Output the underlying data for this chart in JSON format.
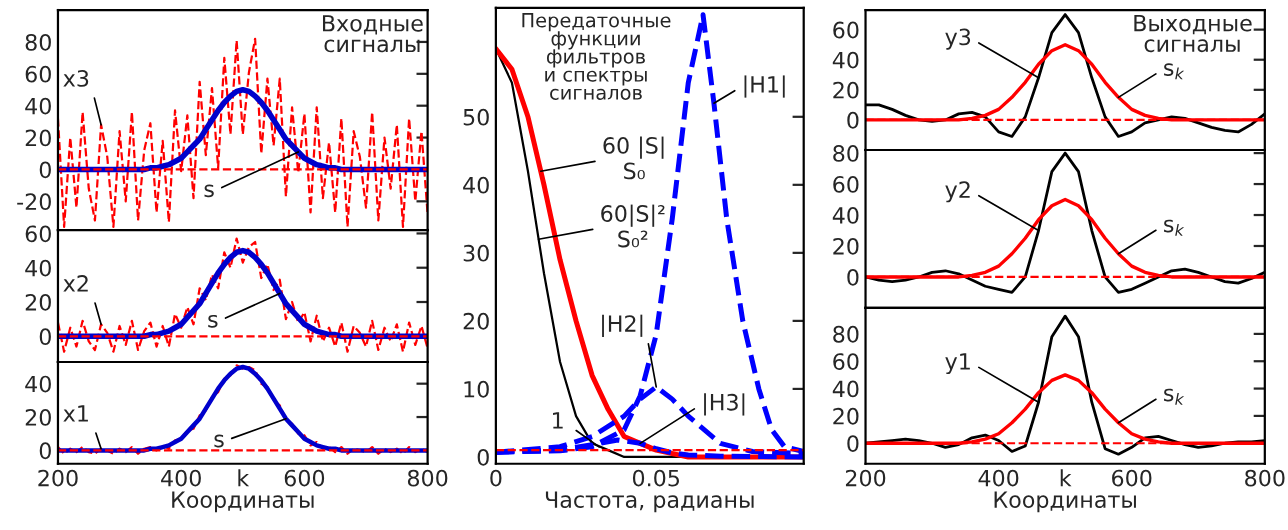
{
  "chart_data": [
    {
      "type": "line",
      "x": [
        200,
        210,
        220,
        230,
        240,
        250,
        260,
        270,
        280,
        290,
        300,
        310,
        320,
        330,
        340,
        350,
        360,
        370,
        380,
        390,
        400,
        410,
        420,
        430,
        440,
        450,
        460,
        470,
        480,
        490,
        500,
        510,
        520,
        530,
        540,
        550,
        560,
        570,
        580,
        590,
        600,
        610,
        620,
        630,
        640,
        650,
        660,
        670,
        680,
        690,
        700,
        710,
        720,
        730,
        740,
        750,
        760,
        770,
        780,
        790,
        800
      ],
      "series": [
        {
          "color": "#ff0000",
          "line_style": "dashed",
          "values": [
            32,
            -36,
            20,
            -24,
            36,
            -12,
            -32,
            28,
            8,
            -36,
            24,
            -20,
            36,
            -32,
            12,
            29,
            -27,
            18,
            -33,
            37,
            -1,
            34,
            -18,
            55,
            9,
            51,
            1,
            70,
            22,
            81,
            22,
            61,
            82,
            10,
            57,
            15,
            57,
            -17,
            39,
            -2,
            35,
            -27,
            39,
            -18,
            17,
            -27,
            32,
            -36,
            24,
            8,
            -24,
            36,
            -32,
            20,
            -12,
            28,
            -36,
            32,
            -20,
            24,
            -28
          ]
        },
        {
          "color": "#0000cc",
          "line_style": "solid",
          "values": [
            0,
            0,
            0,
            0,
            0,
            0,
            0,
            0,
            0,
            0,
            0,
            0,
            0,
            0,
            0,
            1,
            1,
            2,
            3,
            5,
            7,
            11,
            15,
            19,
            25,
            31,
            37,
            42,
            46,
            49,
            50,
            49,
            46,
            42,
            37,
            31,
            25,
            19,
            15,
            11,
            7,
            5,
            3,
            2,
            1,
            1,
            0,
            0,
            0,
            0,
            0,
            0,
            0,
            0,
            0,
            0,
            0,
            0,
            0,
            0,
            0
          ]
        }
      ],
      "xlim": [
        200,
        800
      ],
      "ylim": [
        -38,
        100
      ],
      "xticks": [
        {
          "value": 400,
          "label": null
        },
        {
          "value": 600,
          "label": null
        }
      ],
      "yticks": [
        -20,
        0,
        20,
        40,
        60,
        80
      ],
      "tick_labels": "y",
      "ref_lines": [
        {
          "axis": "y",
          "value": 0,
          "color": "#ff0000",
          "line_style": "dashed"
        }
      ],
      "annotations": [
        {
          "text": "x3",
          "x": 270,
          "y": 28
        },
        {
          "text": "s",
          "x": 590,
          "y": 11
        },
        "Входные\nсигналы"
      ]
    },
    {
      "type": "line",
      "x": [
        200,
        210,
        220,
        230,
        240,
        250,
        260,
        270,
        280,
        290,
        300,
        310,
        320,
        330,
        340,
        350,
        360,
        370,
        380,
        390,
        400,
        410,
        420,
        430,
        440,
        450,
        460,
        470,
        480,
        490,
        500,
        510,
        520,
        530,
        540,
        550,
        560,
        570,
        580,
        590,
        600,
        610,
        620,
        630,
        640,
        650,
        660,
        670,
        680,
        690,
        700,
        710,
        720,
        730,
        740,
        750,
        760,
        770,
        780,
        790,
        800
      ],
      "series": [
        {
          "color": "#ff0000",
          "line_style": "dashed",
          "values": [
            8,
            -9,
            5,
            -6,
            9,
            -3,
            -8,
            7,
            2,
            -9,
            6,
            -5,
            9,
            -8,
            3,
            8,
            -6,
            6,
            -6,
            13,
            5,
            17,
            7,
            28,
            21,
            36,
            28,
            49,
            40,
            57,
            43,
            52,
            55,
            34,
            42,
            27,
            33,
            10,
            20,
            8,
            14,
            -3,
            12,
            -3,
            5,
            -6,
            8,
            -9,
            6,
            2,
            -6,
            9,
            -8,
            5,
            -3,
            7,
            -9,
            8,
            -5,
            6,
            -7
          ]
        },
        {
          "color": "#0000cc",
          "line_style": "solid",
          "values": [
            0,
            0,
            0,
            0,
            0,
            0,
            0,
            0,
            0,
            0,
            0,
            0,
            0,
            0,
            0,
            1,
            1,
            2,
            3,
            5,
            7,
            11,
            15,
            19,
            25,
            31,
            37,
            42,
            46,
            49,
            50,
            49,
            46,
            42,
            37,
            31,
            25,
            19,
            15,
            11,
            7,
            5,
            3,
            2,
            1,
            1,
            0,
            0,
            0,
            0,
            0,
            0,
            0,
            0,
            0,
            0,
            0,
            0,
            0,
            0,
            0
          ]
        }
      ],
      "xlim": [
        200,
        800
      ],
      "ylim": [
        -15,
        62
      ],
      "xticks": [
        {
          "value": 400,
          "label": null
        },
        {
          "value": 600,
          "label": null
        }
      ],
      "yticks": [
        0,
        20,
        40,
        60
      ],
      "tick_labels": "y",
      "ref_lines": [
        {
          "axis": "y",
          "value": 0,
          "color": "#ff0000",
          "line_style": "dashed"
        }
      ],
      "annotations": [
        {
          "text": "x2",
          "x": 270,
          "y": 7
        },
        {
          "text": "s",
          "x": 560,
          "y": 25
        }
      ]
    },
    {
      "type": "line",
      "x": [
        200,
        210,
        220,
        230,
        240,
        250,
        260,
        270,
        280,
        290,
        300,
        310,
        320,
        330,
        340,
        350,
        360,
        370,
        380,
        390,
        400,
        410,
        420,
        430,
        440,
        450,
        460,
        470,
        480,
        490,
        500,
        510,
        520,
        530,
        540,
        550,
        560,
        570,
        580,
        590,
        600,
        610,
        620,
        630,
        640,
        650,
        660,
        670,
        680,
        690,
        700,
        710,
        720,
        730,
        740,
        750,
        760,
        770,
        780,
        790,
        800
      ],
      "series": [
        {
          "color": "#ff0000",
          "line_style": "dashed",
          "values": [
            2,
            -2,
            1,
            -1,
            2,
            -1,
            -2,
            1,
            0,
            -2,
            1,
            -1,
            2,
            -2,
            1,
            2,
            0,
            3,
            1,
            6,
            7,
            12,
            13,
            21,
            24,
            32,
            35,
            43,
            45,
            51,
            49,
            50,
            48,
            40,
            38,
            30,
            27,
            18,
            16,
            10,
            9,
            3,
            5,
            1,
            2,
            -1,
            2,
            -2,
            1,
            0,
            -1,
            2,
            -2,
            1,
            -1,
            1,
            -2,
            2,
            -1,
            1,
            -1
          ]
        },
        {
          "color": "#0000cc",
          "line_style": "solid",
          "values": [
            0,
            0,
            0,
            0,
            0,
            0,
            0,
            0,
            0,
            0,
            0,
            0,
            0,
            0,
            0,
            1,
            1,
            2,
            3,
            5,
            7,
            11,
            15,
            19,
            25,
            31,
            37,
            42,
            46,
            49,
            50,
            49,
            46,
            42,
            37,
            31,
            25,
            19,
            15,
            11,
            7,
            5,
            3,
            2,
            1,
            1,
            0,
            0,
            0,
            0,
            0,
            0,
            0,
            0,
            0,
            0,
            0,
            0,
            0,
            0,
            0
          ]
        }
      ],
      "xlim": [
        200,
        800
      ],
      "ylim": [
        -8,
        53
      ],
      "xticks": [
        200,
        400,
        {
          "value": 500,
          "label": "k"
        },
        600,
        800
      ],
      "yticks": [
        0,
        20,
        40
      ],
      "xlabel": "Координаты",
      "ref_lines": [
        {
          "axis": "y",
          "value": 0,
          "color": "#ff0000",
          "line_style": "dashed"
        }
      ],
      "annotations": [
        {
          "text": "x1",
          "x": 270,
          "y": 1
        },
        {
          "text": "s",
          "x": 570,
          "y": 19
        }
      ]
    },
    {
      "type": "line",
      "series": [
        {
          "color": "#000000",
          "line_style": "solid",
          "x": [
            0,
            0.005,
            0.01,
            0.015,
            0.02,
            0.025,
            0.03,
            0.035,
            0.04,
            0.05,
            0.096
          ],
          "values": [
            60,
            55,
            42,
            27,
            14,
            6,
            2,
            1,
            0,
            0,
            0
          ]
        },
        {
          "color": "#ff0000",
          "line_style": "solid",
          "x": [
            0,
            0.005,
            0.01,
            0.015,
            0.02,
            0.025,
            0.03,
            0.035,
            0.04,
            0.045,
            0.05,
            0.06,
            0.07,
            0.096
          ],
          "values": [
            60,
            57,
            50,
            40,
            29,
            20,
            12,
            7,
            3,
            2,
            1,
            0,
            0,
            0
          ]
        },
        {
          "color": "#0000ff",
          "line_style": "dashed",
          "x": [
            0,
            0.02,
            0.03,
            0.04,
            0.045,
            0.05,
            0.055,
            0.06,
            0.0646,
            0.068,
            0.072,
            0.077,
            0.082,
            0.086,
            0.09,
            0.096
          ],
          "values": [
            0.7,
            0.9,
            1.5,
            4,
            9,
            18,
            35,
            55,
            65,
            52,
            35,
            20,
            10,
            4,
            1.5,
            0.8
          ]
        },
        {
          "color": "#0000ff",
          "line_style": "dashed",
          "x": [
            0,
            0.02,
            0.03,
            0.04,
            0.045,
            0.05,
            0.055,
            0.06,
            0.07,
            0.08,
            0.096
          ],
          "values": [
            0.7,
            1.5,
            3,
            6,
            8.5,
            10.3,
            8.5,
            6,
            2,
            0.8,
            0.5
          ]
        },
        {
          "color": "#0000ff",
          "line_style": "dashed",
          "x": [
            0,
            0.02,
            0.03,
            0.038,
            0.045,
            0.05,
            0.055,
            0.06,
            0.07,
            0.096
          ],
          "values": [
            0.7,
            1,
            1.8,
            2.5,
            2,
            1.2,
            0.6,
            0.3,
            0.1,
            0
          ]
        }
      ],
      "xlim": [
        0,
        0.096
      ],
      "ylim": [
        -1,
        66
      ],
      "xticks": [
        0,
        0.05
      ],
      "yticks": [
        0,
        10,
        20,
        30,
        40,
        50
      ],
      "xlabel": "Частота, радианы",
      "ref_lines": [
        {
          "axis": "y",
          "value": 1,
          "color": "#ff0000",
          "line_style": "dashed",
          "label": "1"
        }
      ],
      "annotations": [
        "Передаточные\nфункции\nфильтров\nи спектры\nсигналов",
        {
          "text": "|H1|",
          "x": 0.068,
          "y": 52
        },
        {
          "text": "|H2|",
          "x": 0.05,
          "y": 10.3
        },
        {
          "text": "|H3|",
          "x": 0.045,
          "y": 2
        },
        {
          "text": "60 |S|\nS₀",
          "x": 0.014,
          "y": 42
        },
        {
          "text": "60|S|²\nS₀²",
          "x": 0.0133,
          "y": 32
        }
      ]
    },
    {
      "type": "line",
      "x": [
        200,
        220,
        240,
        260,
        280,
        300,
        320,
        340,
        360,
        380,
        400,
        420,
        440,
        460,
        480,
        500,
        520,
        540,
        560,
        580,
        600,
        620,
        640,
        660,
        680,
        700,
        720,
        740,
        760,
        780,
        800
      ],
      "series": [
        {
          "color": "#000000",
          "line_style": "solid",
          "values": [
            10,
            10,
            7,
            3,
            0,
            -1,
            0,
            4,
            5,
            2,
            -8,
            -11,
            2,
            28,
            58,
            70,
            58,
            28,
            2,
            -11,
            -8,
            -2,
            0,
            2,
            1,
            -2,
            -5,
            -7,
            -8,
            -3,
            4
          ]
        },
        {
          "color": "#ff0000",
          "line_style": "solid",
          "values": [
            0,
            0,
            0,
            0,
            0,
            0,
            0,
            0,
            1,
            3,
            7,
            15,
            25,
            37,
            46,
            50,
            46,
            37,
            25,
            15,
            7,
            3,
            1,
            0,
            0,
            0,
            0,
            0,
            0,
            0,
            0
          ]
        }
      ],
      "xlim": [
        200,
        800
      ],
      "ylim": [
        -20,
        73
      ],
      "xticks": [
        {
          "value": 400,
          "label": null
        },
        {
          "value": 600,
          "label": null
        }
      ],
      "yticks": [
        0,
        20,
        40,
        60
      ],
      "tick_labels": "y",
      "ref_lines": [
        {
          "axis": "y",
          "value": 0,
          "color": "#ff0000",
          "line_style": "dashed"
        }
      ],
      "annotations": [
        {
          "text": "y3",
          "x": 460,
          "y": 28
        },
        {
          "text": "s$_{k}$",
          "x": 580,
          "y": 15
        },
        "Выходные\nсигналы"
      ]
    },
    {
      "type": "line",
      "x": [
        200,
        220,
        240,
        260,
        280,
        300,
        320,
        340,
        360,
        380,
        400,
        420,
        440,
        460,
        480,
        500,
        520,
        540,
        560,
        580,
        600,
        620,
        640,
        660,
        680,
        700,
        720,
        740,
        760,
        780,
        800
      ],
      "series": [
        {
          "color": "#000000",
          "line_style": "solid",
          "values": [
            0,
            -2,
            -3,
            -2,
            0,
            3,
            4,
            2,
            -2,
            -6,
            -8,
            -10,
            0,
            30,
            68,
            80,
            68,
            30,
            0,
            -10,
            -8,
            -4,
            0,
            4,
            5,
            3,
            0,
            -3,
            -4,
            -1,
            3
          ]
        },
        {
          "color": "#ff0000",
          "line_style": "solid",
          "values": [
            0,
            0,
            0,
            0,
            0,
            0,
            0,
            0,
            1,
            3,
            7,
            15,
            25,
            37,
            46,
            50,
            46,
            37,
            25,
            15,
            7,
            3,
            1,
            0,
            0,
            0,
            0,
            0,
            0,
            0,
            0
          ]
        }
      ],
      "xlim": [
        200,
        800
      ],
      "ylim": [
        -20,
        82
      ],
      "xticks": [
        {
          "value": 400,
          "label": null
        },
        {
          "value": 600,
          "label": null
        }
      ],
      "yticks": [
        0,
        20,
        40,
        60,
        80
      ],
      "tick_labels": "y",
      "ref_lines": [
        {
          "axis": "y",
          "value": 0,
          "color": "#ff0000",
          "line_style": "dashed"
        }
      ],
      "annotations": [
        {
          "text": "y2",
          "x": 460,
          "y": 30
        },
        {
          "text": "s$_{k}$",
          "x": 580,
          "y": 15
        }
      ]
    },
    {
      "type": "line",
      "x": [
        200,
        220,
        240,
        260,
        280,
        300,
        320,
        340,
        360,
        380,
        400,
        420,
        440,
        460,
        480,
        500,
        520,
        540,
        560,
        580,
        600,
        620,
        640,
        660,
        680,
        700,
        720,
        740,
        760,
        780,
        800
      ],
      "series": [
        {
          "color": "#000000",
          "line_style": "solid",
          "values": [
            0,
            1,
            2,
            3,
            2,
            0,
            -3,
            -1,
            4,
            6,
            2,
            -6,
            -2,
            30,
            78,
            93,
            78,
            30,
            -4,
            -8,
            -3,
            4,
            5,
            2,
            -1,
            -3,
            -2,
            0,
            1,
            1,
            2
          ]
        },
        {
          "color": "#ff0000",
          "line_style": "solid",
          "values": [
            0,
            0,
            0,
            0,
            0,
            0,
            0,
            0,
            1,
            3,
            7,
            15,
            25,
            37,
            46,
            50,
            46,
            37,
            25,
            15,
            7,
            3,
            1,
            0,
            0,
            0,
            0,
            0,
            0,
            0,
            0
          ]
        }
      ],
      "xlim": [
        200,
        800
      ],
      "ylim": [
        -15,
        99
      ],
      "xticks": [
        200,
        400,
        {
          "value": 500,
          "label": "k"
        },
        600,
        800
      ],
      "yticks": [
        0,
        20,
        40,
        60,
        80
      ],
      "xlabel": "Координаты",
      "ref_lines": [
        {
          "axis": "y",
          "value": 0,
          "color": "#ff0000",
          "line_style": "dashed"
        }
      ],
      "annotations": [
        {
          "text": "y1",
          "x": 460,
          "y": 30
        },
        {
          "text": "s$_{k}$",
          "x": 580,
          "y": 15
        }
      ]
    }
  ]
}
